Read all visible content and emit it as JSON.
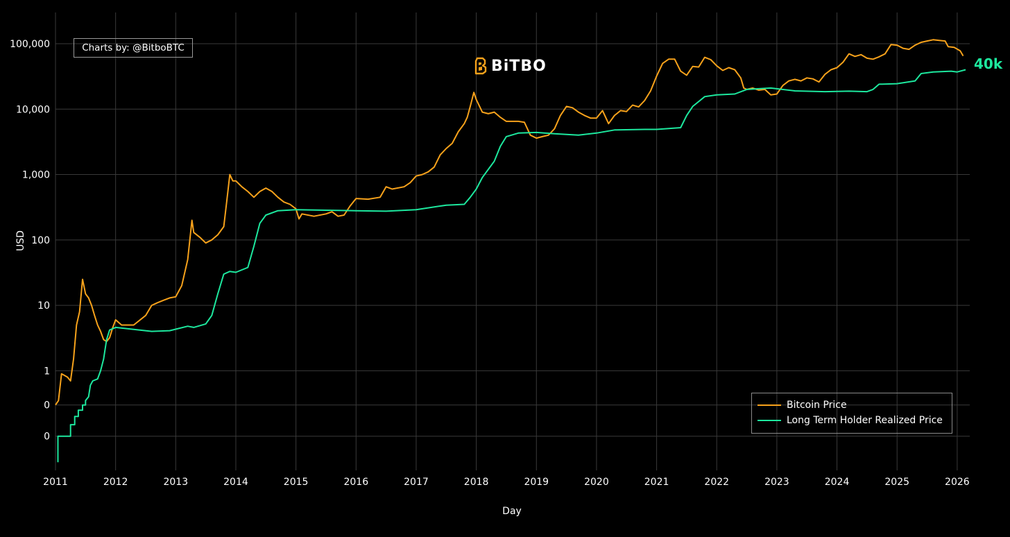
{
  "credit": "Charts by: @BitboBTC",
  "logo": {
    "text": "BiTBO",
    "icon": "bitbo-b-icon",
    "color": "#f7a21b"
  },
  "end_label": {
    "text": "40k",
    "color": "#1de89e"
  },
  "chart_data": {
    "type": "line",
    "title": "",
    "xlabel": "Day",
    "ylabel": "USD",
    "yscale": "log",
    "xlim": [
      2011.0,
      2026.14
    ],
    "ylim": [
      0.03,
      300000
    ],
    "grid": true,
    "legend_position": "bottom-right",
    "x_ticks": [
      "2011",
      "2012",
      "2013",
      "2014",
      "2015",
      "2016",
      "2017",
      "2018",
      "2019",
      "2020",
      "2021",
      "2022",
      "2023",
      "2024",
      "2025",
      "2026"
    ],
    "y_ticks": [
      {
        "value": 0.1,
        "label": "0"
      },
      {
        "value": 0.3,
        "label": "0"
      },
      {
        "value": 1,
        "label": "1"
      },
      {
        "value": 10,
        "label": "10"
      },
      {
        "value": 100,
        "label": "100"
      },
      {
        "value": 1000,
        "label": "1,000"
      },
      {
        "value": 10000,
        "label": "10,000"
      },
      {
        "value": 100000,
        "label": "100,000"
      }
    ],
    "series": [
      {
        "name": "Bitcoin Price",
        "color": "#f7a21b",
        "points": [
          [
            2011.0,
            0.3
          ],
          [
            2011.05,
            0.35
          ],
          [
            2011.1,
            0.9
          ],
          [
            2011.15,
            0.85
          ],
          [
            2011.2,
            0.8
          ],
          [
            2011.25,
            0.7
          ],
          [
            2011.3,
            1.5
          ],
          [
            2011.35,
            5
          ],
          [
            2011.4,
            8
          ],
          [
            2011.45,
            25
          ],
          [
            2011.5,
            15
          ],
          [
            2011.55,
            13
          ],
          [
            2011.6,
            10
          ],
          [
            2011.65,
            7
          ],
          [
            2011.7,
            5
          ],
          [
            2011.75,
            4
          ],
          [
            2011.8,
            3
          ],
          [
            2011.85,
            2.8
          ],
          [
            2011.9,
            3.2
          ],
          [
            2011.95,
            4.5
          ],
          [
            2012.0,
            6
          ],
          [
            2012.1,
            5
          ],
          [
            2012.3,
            5
          ],
          [
            2012.5,
            7
          ],
          [
            2012.6,
            10
          ],
          [
            2012.7,
            11
          ],
          [
            2012.8,
            12
          ],
          [
            2012.9,
            13
          ],
          [
            2013.0,
            13.5
          ],
          [
            2013.1,
            20
          ],
          [
            2013.2,
            50
          ],
          [
            2013.27,
            200
          ],
          [
            2013.3,
            130
          ],
          [
            2013.4,
            110
          ],
          [
            2013.5,
            90
          ],
          [
            2013.6,
            100
          ],
          [
            2013.7,
            120
          ],
          [
            2013.8,
            160
          ],
          [
            2013.85,
            400
          ],
          [
            2013.9,
            1000
          ],
          [
            2013.95,
            800
          ],
          [
            2014.0,
            800
          ],
          [
            2014.1,
            650
          ],
          [
            2014.2,
            550
          ],
          [
            2014.3,
            450
          ],
          [
            2014.4,
            550
          ],
          [
            2014.5,
            620
          ],
          [
            2014.6,
            550
          ],
          [
            2014.7,
            450
          ],
          [
            2014.8,
            380
          ],
          [
            2014.9,
            350
          ],
          [
            2015.0,
            300
          ],
          [
            2015.05,
            210
          ],
          [
            2015.1,
            250
          ],
          [
            2015.3,
            230
          ],
          [
            2015.5,
            250
          ],
          [
            2015.6,
            270
          ],
          [
            2015.7,
            230
          ],
          [
            2015.8,
            240
          ],
          [
            2015.9,
            330
          ],
          [
            2016.0,
            430
          ],
          [
            2016.2,
            420
          ],
          [
            2016.4,
            450
          ],
          [
            2016.5,
            650
          ],
          [
            2016.6,
            600
          ],
          [
            2016.8,
            650
          ],
          [
            2016.9,
            750
          ],
          [
            2017.0,
            950
          ],
          [
            2017.1,
            1000
          ],
          [
            2017.2,
            1100
          ],
          [
            2017.3,
            1300
          ],
          [
            2017.4,
            2000
          ],
          [
            2017.5,
            2500
          ],
          [
            2017.6,
            3000
          ],
          [
            2017.7,
            4500
          ],
          [
            2017.8,
            6000
          ],
          [
            2017.85,
            7500
          ],
          [
            2017.9,
            11000
          ],
          [
            2017.96,
            18000
          ],
          [
            2018.0,
            14000
          ],
          [
            2018.1,
            9000
          ],
          [
            2018.2,
            8500
          ],
          [
            2018.3,
            9000
          ],
          [
            2018.4,
            7500
          ],
          [
            2018.5,
            6500
          ],
          [
            2018.6,
            6500
          ],
          [
            2018.7,
            6500
          ],
          [
            2018.8,
            6300
          ],
          [
            2018.9,
            4000
          ],
          [
            2019.0,
            3600
          ],
          [
            2019.1,
            3800
          ],
          [
            2019.2,
            4000
          ],
          [
            2019.3,
            5000
          ],
          [
            2019.4,
            8000
          ],
          [
            2019.5,
            11000
          ],
          [
            2019.6,
            10500
          ],
          [
            2019.7,
            9000
          ],
          [
            2019.8,
            8000
          ],
          [
            2019.9,
            7300
          ],
          [
            2020.0,
            7300
          ],
          [
            2020.1,
            9500
          ],
          [
            2020.2,
            6000
          ],
          [
            2020.3,
            8000
          ],
          [
            2020.4,
            9500
          ],
          [
            2020.5,
            9200
          ],
          [
            2020.6,
            11500
          ],
          [
            2020.7,
            10800
          ],
          [
            2020.8,
            13500
          ],
          [
            2020.9,
            19000
          ],
          [
            2021.0,
            32000
          ],
          [
            2021.1,
            50000
          ],
          [
            2021.2,
            58000
          ],
          [
            2021.3,
            58000
          ],
          [
            2021.4,
            38000
          ],
          [
            2021.5,
            33000
          ],
          [
            2021.6,
            45000
          ],
          [
            2021.7,
            44000
          ],
          [
            2021.8,
            62000
          ],
          [
            2021.9,
            57000
          ],
          [
            2022.0,
            46000
          ],
          [
            2022.1,
            39000
          ],
          [
            2022.2,
            43000
          ],
          [
            2022.3,
            40000
          ],
          [
            2022.4,
            30000
          ],
          [
            2022.45,
            21000
          ],
          [
            2022.5,
            20000
          ],
          [
            2022.6,
            21000
          ],
          [
            2022.7,
            19500
          ],
          [
            2022.8,
            20000
          ],
          [
            2022.9,
            16500
          ],
          [
            2023.0,
            17000
          ],
          [
            2023.1,
            23000
          ],
          [
            2023.2,
            27000
          ],
          [
            2023.3,
            28500
          ],
          [
            2023.4,
            27000
          ],
          [
            2023.5,
            30000
          ],
          [
            2023.6,
            29000
          ],
          [
            2023.7,
            26000
          ],
          [
            2023.8,
            34000
          ],
          [
            2023.9,
            40000
          ],
          [
            2024.0,
            43000
          ],
          [
            2024.1,
            52000
          ],
          [
            2024.2,
            70000
          ],
          [
            2024.3,
            64000
          ],
          [
            2024.4,
            68000
          ],
          [
            2024.5,
            60000
          ],
          [
            2024.6,
            58000
          ],
          [
            2024.7,
            63000
          ],
          [
            2024.8,
            70000
          ],
          [
            2024.9,
            97000
          ],
          [
            2025.0,
            95000
          ],
          [
            2025.1,
            85000
          ],
          [
            2025.2,
            82000
          ],
          [
            2025.3,
            95000
          ],
          [
            2025.4,
            105000
          ],
          [
            2025.5,
            110000
          ],
          [
            2025.6,
            115000
          ],
          [
            2025.7,
            112000
          ],
          [
            2025.8,
            110000
          ],
          [
            2025.85,
            90000
          ],
          [
            2025.95,
            88000
          ],
          [
            2026.05,
            78000
          ],
          [
            2026.1,
            65000
          ]
        ]
      },
      {
        "name": "Long Term Holder Realized Price",
        "color": "#1de89e",
        "points": [
          [
            2011.04,
            0.04
          ],
          [
            2011.04,
            0.1
          ],
          [
            2011.25,
            0.1
          ],
          [
            2011.25,
            0.15
          ],
          [
            2011.32,
            0.15
          ],
          [
            2011.32,
            0.2
          ],
          [
            2011.38,
            0.2
          ],
          [
            2011.38,
            0.25
          ],
          [
            2011.45,
            0.25
          ],
          [
            2011.45,
            0.3
          ],
          [
            2011.5,
            0.3
          ],
          [
            2011.5,
            0.35
          ],
          [
            2011.55,
            0.4
          ],
          [
            2011.58,
            0.6
          ],
          [
            2011.62,
            0.7
          ],
          [
            2011.7,
            0.75
          ],
          [
            2011.75,
            1.0
          ],
          [
            2011.8,
            1.5
          ],
          [
            2011.85,
            3
          ],
          [
            2011.9,
            4.2
          ],
          [
            2012.0,
            4.6
          ],
          [
            2012.3,
            4.3
          ],
          [
            2012.6,
            4.0
          ],
          [
            2012.9,
            4.1
          ],
          [
            2013.2,
            4.8
          ],
          [
            2013.3,
            4.6
          ],
          [
            2013.5,
            5.2
          ],
          [
            2013.6,
            7
          ],
          [
            2013.7,
            15
          ],
          [
            2013.8,
            30
          ],
          [
            2013.9,
            33
          ],
          [
            2014.0,
            32
          ],
          [
            2014.2,
            38
          ],
          [
            2014.3,
            80
          ],
          [
            2014.4,
            180
          ],
          [
            2014.5,
            240
          ],
          [
            2014.7,
            280
          ],
          [
            2015.0,
            290
          ],
          [
            2015.5,
            285
          ],
          [
            2016.0,
            280
          ],
          [
            2016.5,
            275
          ],
          [
            2017.0,
            290
          ],
          [
            2017.5,
            340
          ],
          [
            2017.8,
            350
          ],
          [
            2017.9,
            450
          ],
          [
            2018.0,
            600
          ],
          [
            2018.1,
            900
          ],
          [
            2018.3,
            1600
          ],
          [
            2018.4,
            2700
          ],
          [
            2018.5,
            3800
          ],
          [
            2018.7,
            4300
          ],
          [
            2019.0,
            4400
          ],
          [
            2019.3,
            4200
          ],
          [
            2019.7,
            4000
          ],
          [
            2020.0,
            4300
          ],
          [
            2020.3,
            4800
          ],
          [
            2020.8,
            4900
          ],
          [
            2021.0,
            4900
          ],
          [
            2021.4,
            5200
          ],
          [
            2021.5,
            8000
          ],
          [
            2021.6,
            11000
          ],
          [
            2021.8,
            15500
          ],
          [
            2022.0,
            16500
          ],
          [
            2022.3,
            17000
          ],
          [
            2022.5,
            20000
          ],
          [
            2022.9,
            21000
          ],
          [
            2023.3,
            19000
          ],
          [
            2023.8,
            18500
          ],
          [
            2024.2,
            18800
          ],
          [
            2024.5,
            18500
          ],
          [
            2024.6,
            20000
          ],
          [
            2024.7,
            24000
          ],
          [
            2025.0,
            24500
          ],
          [
            2025.3,
            27000
          ],
          [
            2025.4,
            35000
          ],
          [
            2025.6,
            37000
          ],
          [
            2025.9,
            38000
          ],
          [
            2026.0,
            37000
          ],
          [
            2026.14,
            40000
          ]
        ]
      }
    ]
  }
}
